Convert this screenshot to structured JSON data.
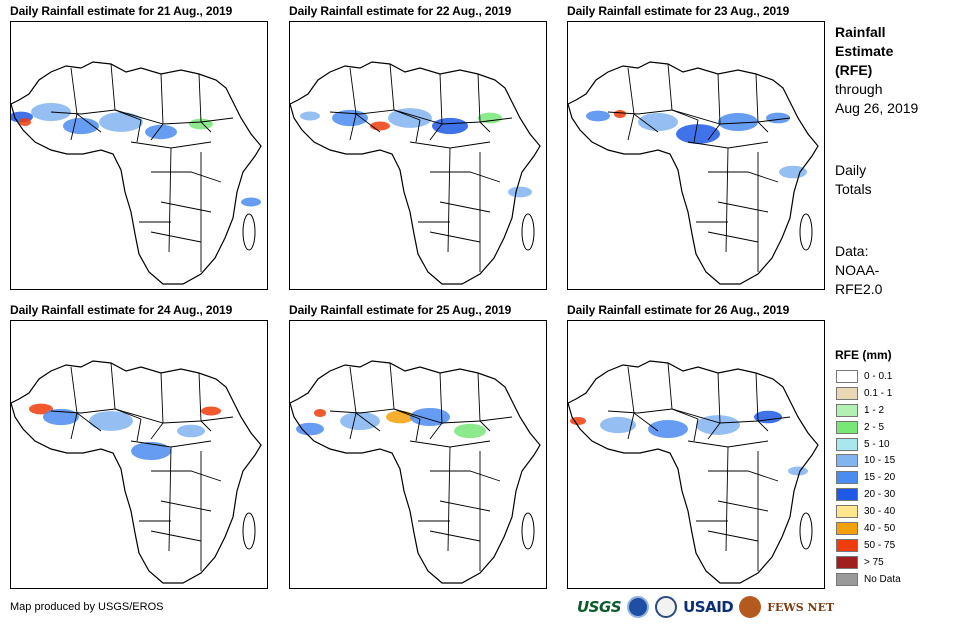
{
  "panels": [
    {
      "title": "Daily Rainfall estimate for 21 Aug., 2019"
    },
    {
      "title": "Daily Rainfall estimate for 22 Aug., 2019"
    },
    {
      "title": "Daily Rainfall estimate for 23 Aug., 2019"
    },
    {
      "title": "Daily Rainfall estimate for 24 Aug., 2019"
    },
    {
      "title": "Daily Rainfall estimate for 25 Aug., 2019"
    },
    {
      "title": "Daily Rainfall estimate for 26 Aug., 2019"
    }
  ],
  "side": {
    "title_line1": "Rainfall",
    "title_line2": "Estimate",
    "title_line3": "(RFE)",
    "through": "through",
    "date": "Aug 26, 2019",
    "daily1": "Daily",
    "daily2": "Totals",
    "data1": "Data:",
    "data2": "NOAA-",
    "data3": "RFE2.0"
  },
  "legend": {
    "title": "RFE (mm)",
    "items": [
      {
        "label": "0 - 0.1",
        "color": "#ffffff"
      },
      {
        "label": "0.1 - 1",
        "color": "#ead8b4"
      },
      {
        "label": "1 - 2",
        "color": "#b4f0b4"
      },
      {
        "label": "2 - 5",
        "color": "#78e678"
      },
      {
        "label": "5 - 10",
        "color": "#a8e6f0"
      },
      {
        "label": "10 - 15",
        "color": "#82b4f0"
      },
      {
        "label": "15 - 20",
        "color": "#4b8cf0"
      },
      {
        "label": "20 - 30",
        "color": "#1e5ae6"
      },
      {
        "label": "30 - 40",
        "color": "#ffe68c"
      },
      {
        "label": "40 - 50",
        "color": "#f5a00a"
      },
      {
        "label": "50 - 75",
        "color": "#f03c0a"
      },
      {
        "label": "> 75",
        "color": "#a01e1e"
      },
      {
        "label": "No Data",
        "color": "#9a9a9a"
      }
    ]
  },
  "footer": {
    "credit": "Map produced by USGS/EROS"
  },
  "logos": {
    "usgs": "USGS",
    "usaid": "USAID",
    "fews": "FEWS NET"
  }
}
